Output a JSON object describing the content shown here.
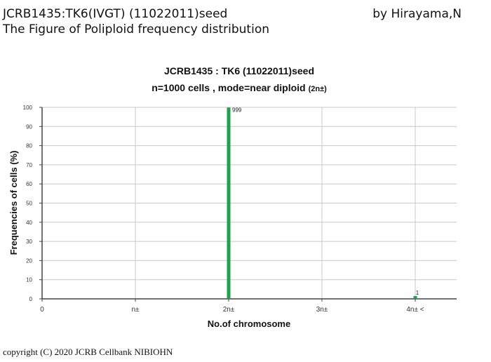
{
  "header": {
    "title": "JCRB1435:TK6(IVGT) (11022011)seed",
    "subtitle": "The Figure of Poliploid frequency distribution",
    "author": "by Hirayama,N"
  },
  "footer": {
    "copyright": "copyright (C) 2020 JCRB Cellbank NIBIOHN"
  },
  "chart_data": {
    "type": "bar",
    "title": "JCRB1435 : TK6 (11022011)seed",
    "subtitle": "n=1000 cells ,   mode=near diploid",
    "subtitle_suffix": "(2n±)",
    "xlabel": "No.of chromosome",
    "ylabel": "Frequencies of cells (%)",
    "categories": [
      "0",
      "n±",
      "2n±",
      "3n±",
      "4n± <"
    ],
    "values": [
      0,
      0,
      99.9,
      0,
      0.1
    ],
    "data_labels": [
      "",
      "",
      "999",
      "",
      "1"
    ],
    "ylim": [
      0,
      100
    ],
    "yticks": [
      0,
      10,
      20,
      30,
      40,
      50,
      60,
      70,
      80,
      90,
      100
    ],
    "grid": true,
    "bar_color": "#1fa34a"
  }
}
